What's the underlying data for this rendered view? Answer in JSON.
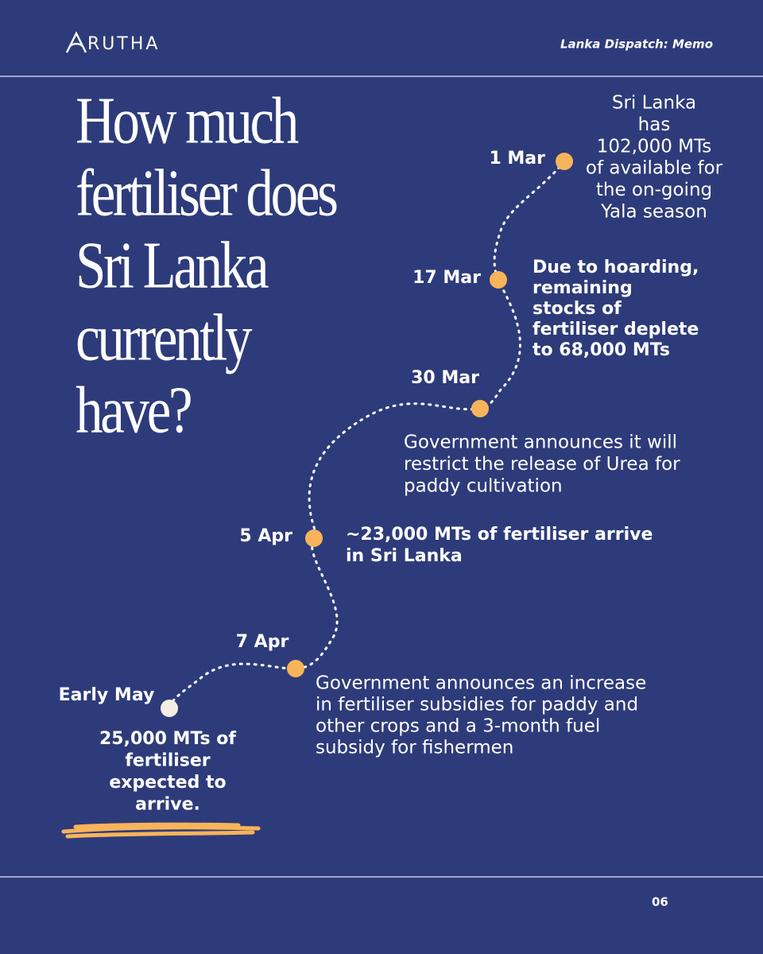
{
  "header": {
    "logo": "RUTHA",
    "tag": "Lanka Dispatch: Memo"
  },
  "title_lines": [
    "How much",
    "fertiliser does",
    "Sri Lanka",
    "currently",
    "have?"
  ],
  "timeline": [
    {
      "date": "1 Mar",
      "text_lines": [
        "Sri Lanka",
        "has",
        "102,000 MTs",
        "of  available for",
        "the on-going",
        "Yala season"
      ]
    },
    {
      "date": "17 Mar",
      "text_lines": [
        "Due to hoarding,",
        "remaining",
        "stocks of",
        "fertiliser deplete",
        "to 68,000 MTs"
      ]
    },
    {
      "date": "30 Mar",
      "text_lines": [
        "Government announces it will",
        "restrict the release of Urea for",
        "paddy cultivation"
      ]
    },
    {
      "date": "5 Apr",
      "text_lines": [
        "~23,000 MTs of fertiliser arrive",
        "in Sri Lanka"
      ]
    },
    {
      "date": "7 Apr",
      "text_lines": [
        "Government announces an increase",
        "in fertiliser subsidies for paddy and",
        "other crops and a 3-month fuel",
        "subsidy for fishermen"
      ]
    },
    {
      "date": "Early May",
      "text_lines": [
        "25,000 MTs of",
        "fertiliser",
        "expected to",
        "arrive."
      ]
    }
  ],
  "footer": {
    "page": "06"
  }
}
